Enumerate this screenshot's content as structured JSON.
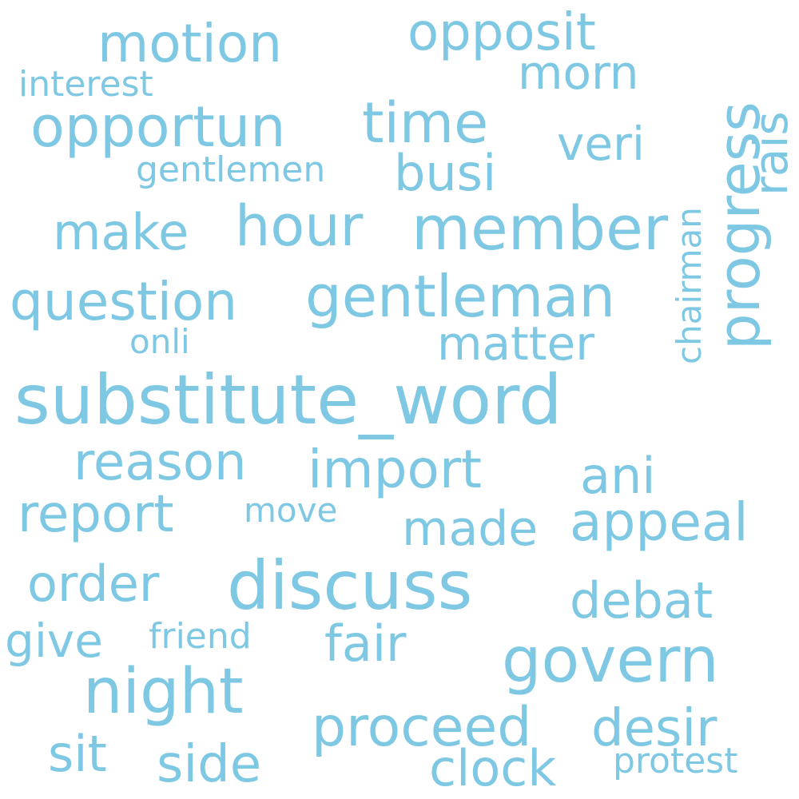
{
  "word_color": "#7ec8e3",
  "background_color": "#ffffff",
  "words": [
    "substitute_word",
    "discuss",
    "member",
    "gentleman",
    "govern",
    "night",
    "hour",
    "opportun",
    "progress",
    "time",
    "question",
    "proceed",
    "motion",
    "opposit",
    "import",
    "appeal",
    "report",
    "reason",
    "order",
    "make",
    "desir",
    "debat",
    "clock",
    "busi",
    "matter",
    "fair",
    "veri",
    "morn",
    "made",
    "rais",
    "side",
    "sit",
    "ani",
    "give",
    "chairman",
    "gentlemen",
    "interest",
    "protest",
    "friend",
    "move",
    "onli"
  ]
}
